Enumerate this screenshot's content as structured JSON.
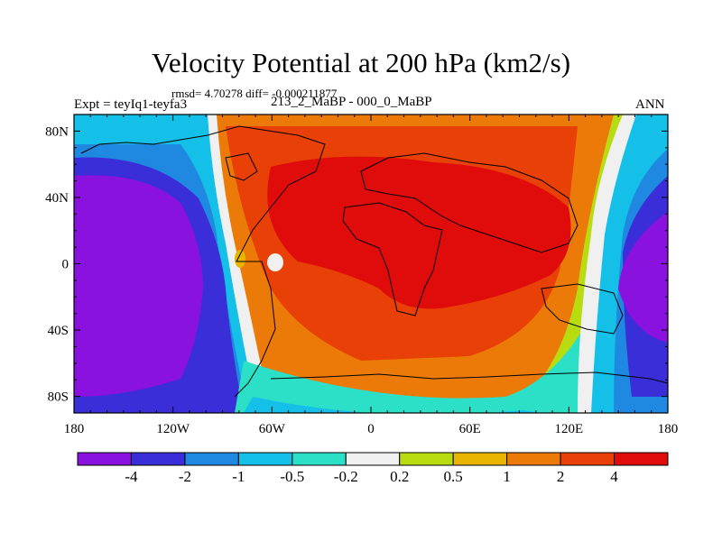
{
  "title": "Velocity Potential at 200 hPa (km2/s)",
  "stats": "rmsd= 4.70278 diff= -0.000211877",
  "expt": "Expt = teyIq1-teyfa3",
  "case_id": "213_2_MaBP - 000_0_MaBP",
  "season": "ANN",
  "x_ticks": [
    "180",
    "120W",
    "60W",
    "0",
    "60E",
    "120E",
    "180"
  ],
  "y_ticks": [
    "80N",
    "40N",
    "0",
    "40S",
    "80S"
  ],
  "colorbar": {
    "levels": [
      "-4",
      "-2",
      "-1",
      "-0.5",
      "-0.2",
      "0.2",
      "0.5",
      "1",
      "2",
      "4"
    ],
    "colors": [
      "#8a12de",
      "#3a2ed8",
      "#1f88e0",
      "#15c0e8",
      "#2ce0c8",
      "#f0f0f0",
      "#b8dc10",
      "#e8b400",
      "#ec7a08",
      "#e84006",
      "#e00c0c"
    ]
  }
}
